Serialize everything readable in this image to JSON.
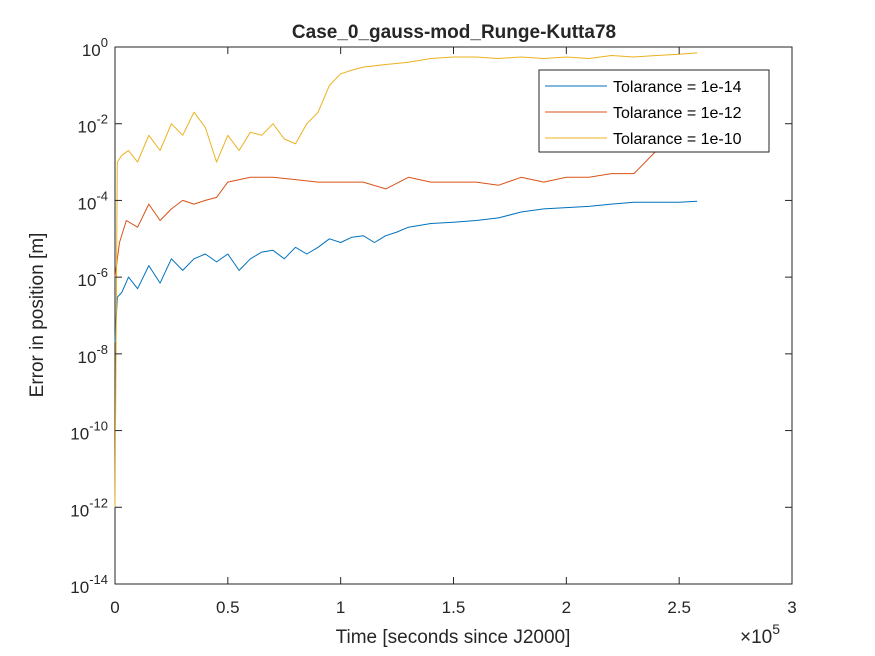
{
  "chart_data": {
    "type": "line",
    "title": "Case_0_gauss-mod_Runge-Kutta78",
    "xlabel": "Time [seconds since J2000]",
    "ylabel": "Error in position [m]",
    "x_exponent_label": "×10",
    "x_exponent_power": "5",
    "xlim": [
      0,
      300000
    ],
    "ylim": [
      1e-14,
      1
    ],
    "yscale": "log",
    "x_ticks": [
      0,
      50000,
      100000,
      150000,
      200000,
      250000,
      300000
    ],
    "x_tick_labels": [
      "0",
      "0.5",
      "1",
      "1.5",
      "2",
      "2.5",
      "3"
    ],
    "y_ticks": [
      1e-14,
      1e-12,
      1e-10,
      1e-08,
      1e-06,
      0.0001,
      0.01,
      1
    ],
    "y_tick_labels": [
      {
        "base": "10",
        "exp": "-14"
      },
      {
        "base": "10",
        "exp": "-12"
      },
      {
        "base": "10",
        "exp": "-10"
      },
      {
        "base": "10",
        "exp": "-8"
      },
      {
        "base": "10",
        "exp": "-6"
      },
      {
        "base": "10",
        "exp": "-4"
      },
      {
        "base": "10",
        "exp": "-2"
      },
      {
        "base": "10",
        "exp": "0"
      }
    ],
    "grid": false,
    "legend_position": "top-right",
    "series": [
      {
        "name": "Tolarance = 1e-14",
        "color": "#0072BD",
        "x": [
          0,
          1000,
          3000,
          6000,
          10000,
          15000,
          20000,
          25000,
          30000,
          35000,
          40000,
          45000,
          50000,
          55000,
          60000,
          65000,
          70000,
          75000,
          80000,
          85000,
          90000,
          95000,
          100000,
          105000,
          110000,
          115000,
          120000,
          125000,
          130000,
          140000,
          150000,
          160000,
          170000,
          180000,
          190000,
          200000,
          210000,
          220000,
          230000,
          240000,
          250000,
          258000
        ],
        "y": [
          2e-08,
          3e-07,
          4e-07,
          1e-06,
          5e-07,
          2e-06,
          7e-07,
          3e-06,
          1.5e-06,
          3e-06,
          4e-06,
          2.5e-06,
          4e-06,
          1.5e-06,
          3e-06,
          4.5e-06,
          5e-06,
          3e-06,
          6e-06,
          4e-06,
          6e-06,
          1e-05,
          8e-06,
          1.1e-05,
          1.2e-05,
          8e-06,
          1.2e-05,
          1.5e-05,
          2e-05,
          2.5e-05,
          2.7e-05,
          3e-05,
          3.5e-05,
          5e-05,
          6e-05,
          6.5e-05,
          7e-05,
          8e-05,
          9e-05,
          9e-05,
          9e-05,
          9.5e-05
        ]
      },
      {
        "name": "Tolarance = 1e-12",
        "color": "#D95319",
        "x": [
          0,
          2000,
          5000,
          10000,
          15000,
          20000,
          25000,
          30000,
          35000,
          40000,
          45000,
          50000,
          60000,
          70000,
          80000,
          90000,
          100000,
          110000,
          120000,
          130000,
          140000,
          150000,
          160000,
          170000,
          180000,
          190000,
          200000,
          210000,
          220000,
          230000,
          240000,
          250000
        ],
        "y": [
          1e-06,
          8e-06,
          3e-05,
          2e-05,
          8e-05,
          3e-05,
          6e-05,
          0.0001,
          8e-05,
          0.0001,
          0.00012,
          0.0003,
          0.0004,
          0.0004,
          0.00035,
          0.0003,
          0.0003,
          0.0003,
          0.0002,
          0.0004,
          0.0003,
          0.0003,
          0.0003,
          0.00025,
          0.0004,
          0.0003,
          0.0004,
          0.0004,
          0.0005,
          0.0005,
          0.002,
          0.002
        ]
      },
      {
        "name": "Tolarance = 1e-10",
        "color": "#EDB120",
        "x": [
          0,
          1000,
          3000,
          6000,
          10000,
          15000,
          20000,
          25000,
          30000,
          35000,
          40000,
          45000,
          50000,
          55000,
          60000,
          65000,
          70000,
          75000,
          80000,
          85000,
          88000,
          90000,
          95000,
          100000,
          105000,
          110000,
          120000,
          130000,
          140000,
          150000,
          160000,
          170000,
          180000,
          190000,
          200000,
          210000,
          220000,
          230000,
          240000,
          250000,
          258000
        ],
        "y": [
          1e-12,
          0.001,
          0.0015,
          0.002,
          0.001,
          0.005,
          0.002,
          0.01,
          0.005,
          0.02,
          0.008,
          0.001,
          0.005,
          0.002,
          0.006,
          0.005,
          0.01,
          0.004,
          0.003,
          0.01,
          0.015,
          0.02,
          0.1,
          0.2,
          0.25,
          0.3,
          0.35,
          0.4,
          0.5,
          0.55,
          0.55,
          0.5,
          0.55,
          0.5,
          0.55,
          0.5,
          0.6,
          0.55,
          0.6,
          0.65,
          0.7
        ]
      }
    ]
  }
}
